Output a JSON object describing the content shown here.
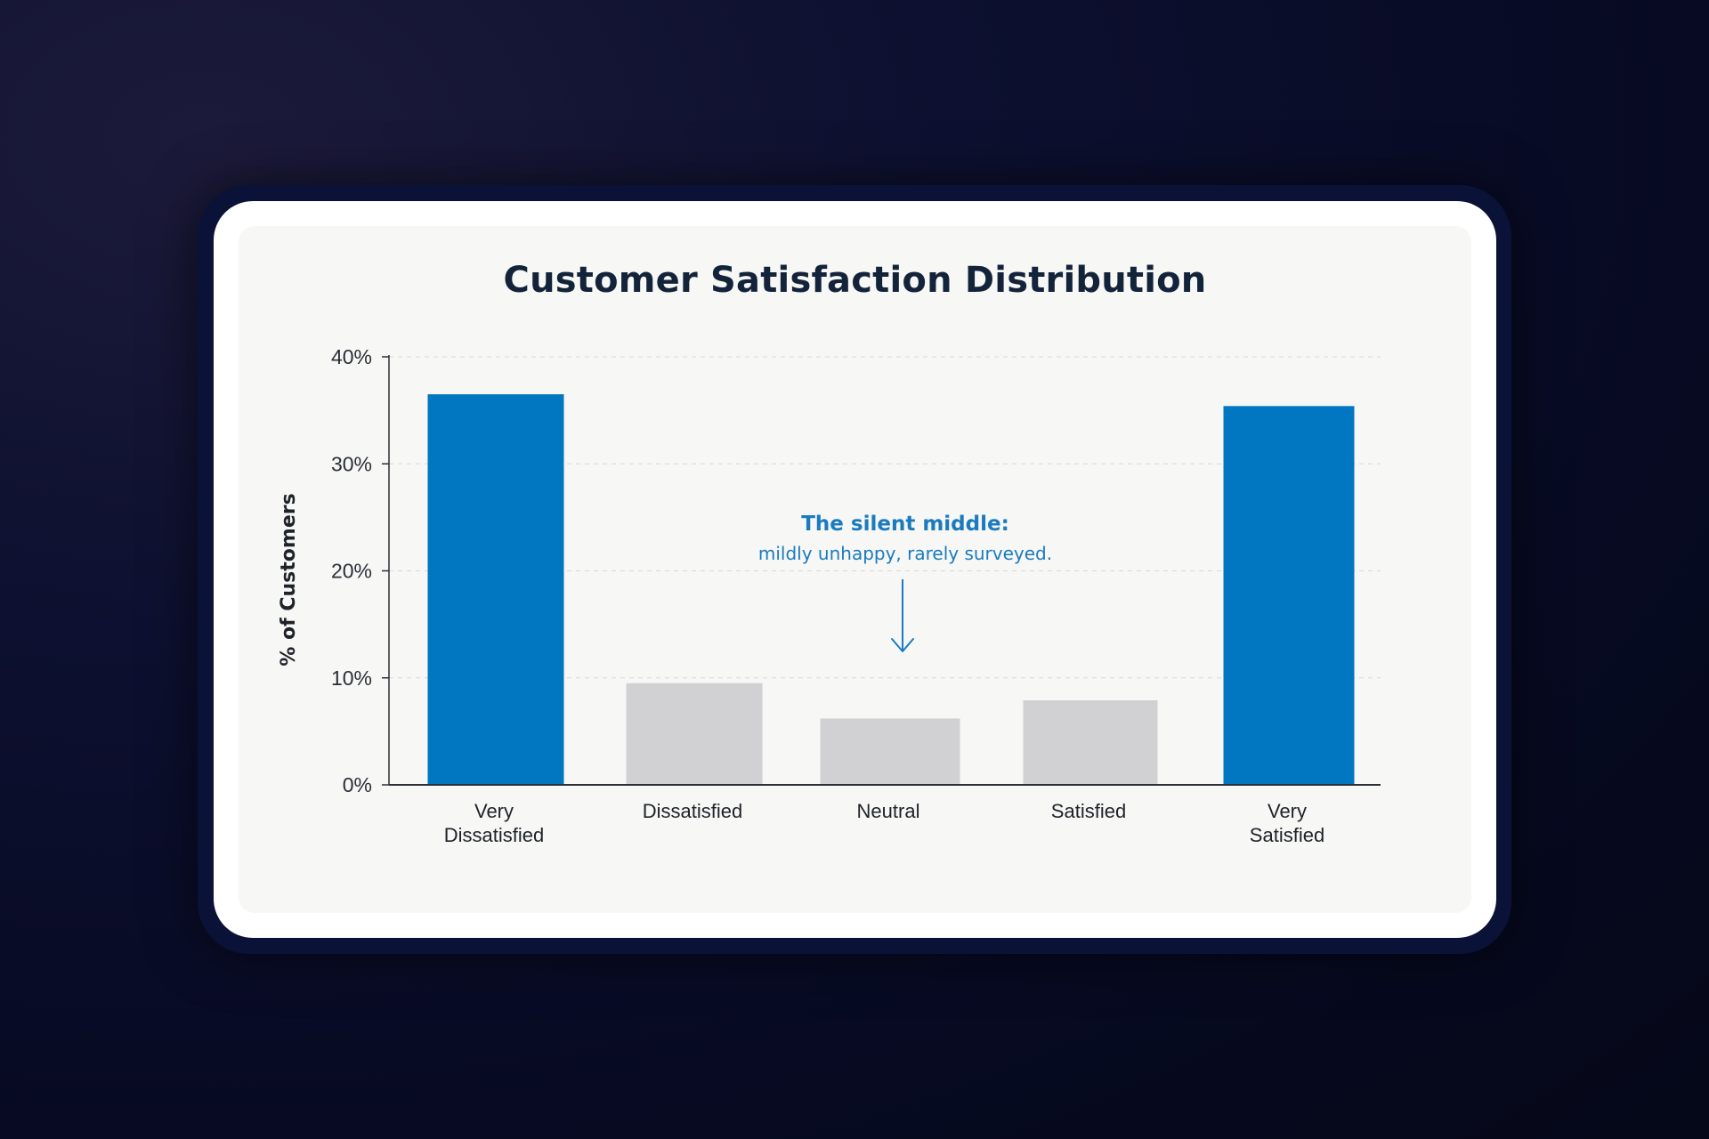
{
  "chart_data": {
    "type": "bar",
    "title": "Customer Satisfaction Distribution",
    "xlabel": "",
    "ylabel": "% of Customers",
    "ylim": [
      0,
      40
    ],
    "yticks": [
      0,
      10,
      20,
      30,
      40
    ],
    "ytick_labels": [
      "0%",
      "10%",
      "20%",
      "30%",
      "40%"
    ],
    "grid": true,
    "categories": [
      [
        "Very",
        "Dissatisfied"
      ],
      [
        "Dissatisfied"
      ],
      [
        "Neutral"
      ],
      [
        "Satisfied"
      ],
      [
        "Very",
        "Satisfied"
      ]
    ],
    "values": [
      36.5,
      9.5,
      6.2,
      7.9,
      35.4
    ],
    "highlight": [
      true,
      false,
      false,
      false,
      true
    ],
    "colors": {
      "highlight": "#0077c0",
      "muted": "#d1d1d3",
      "axis": "#2b2f36",
      "grid": "#d8d8d8",
      "annotation": "#1a7bbf"
    },
    "annotation": {
      "heading": "The silent middle:",
      "text": "mildly unhappy, rarely surveyed.",
      "points_to": "Neutral"
    }
  }
}
